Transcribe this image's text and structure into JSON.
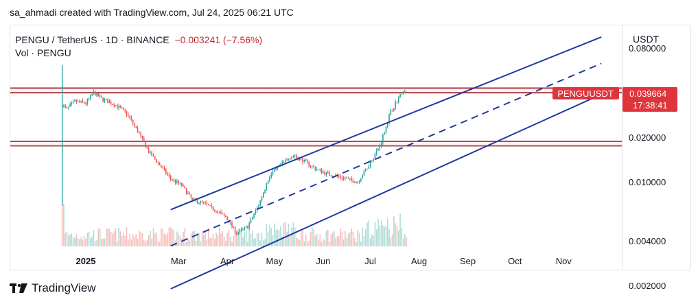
{
  "attribution": "sa_ahmadi created with TradingView.com, Jul 24, 2025 06:21 UTC",
  "legend": {
    "symbol": "PENGU / TetherUS · 1D · BINANCE",
    "change": "−0.003241 (−7.56%)",
    "volume_label": "Vol · PENGU"
  },
  "price_scale": {
    "currency": "USDT",
    "ticks": [
      "0.080000",
      "0.020000",
      "0.010000",
      "0.004000",
      "0.002000"
    ],
    "current_symbol": "PENGUUSDT",
    "current_price": "0.039664",
    "countdown": "17:38:41"
  },
  "footer_logo": "TradingView",
  "colors": {
    "candle_up": "#26a69a",
    "candle_down": "#ef5350",
    "channel": "#1e3a9e",
    "resistance": "#9b1c24",
    "price_label": "#e0343c"
  },
  "chart_data": {
    "type": "candlestick",
    "scale": "log",
    "ylim": [
      0.00155,
      0.115
    ],
    "x_ticks": [
      "2025",
      "Mar",
      "Apr",
      "May",
      "Jun",
      "Jul",
      "Aug",
      "Sep",
      "Oct",
      "Nov"
    ],
    "last_price": 0.039664,
    "closes": [
      {
        "date": "2024-12-17",
        "close": 0.033
      },
      {
        "date": "2024-12-20",
        "close": 0.031
      },
      {
        "date": "2024-12-25",
        "close": 0.035
      },
      {
        "date": "2025-01-01",
        "close": 0.034
      },
      {
        "date": "2025-01-06",
        "close": 0.04
      },
      {
        "date": "2025-01-12",
        "close": 0.036
      },
      {
        "date": "2025-01-20",
        "close": 0.033
      },
      {
        "date": "2025-01-27",
        "close": 0.029
      },
      {
        "date": "2025-02-03",
        "close": 0.022
      },
      {
        "date": "2025-02-10",
        "close": 0.016
      },
      {
        "date": "2025-02-17",
        "close": 0.013
      },
      {
        "date": "2025-02-24",
        "close": 0.0105
      },
      {
        "date": "2025-03-03",
        "close": 0.0095
      },
      {
        "date": "2025-03-10",
        "close": 0.0075
      },
      {
        "date": "2025-03-17",
        "close": 0.0072
      },
      {
        "date": "2025-03-24",
        "close": 0.0065
      },
      {
        "date": "2025-03-31",
        "close": 0.0058
      },
      {
        "date": "2025-04-07",
        "close": 0.0045
      },
      {
        "date": "2025-04-14",
        "close": 0.005
      },
      {
        "date": "2025-04-21",
        "close": 0.007
      },
      {
        "date": "2025-04-28",
        "close": 0.011
      },
      {
        "date": "2025-05-05",
        "close": 0.013
      },
      {
        "date": "2025-05-12",
        "close": 0.015
      },
      {
        "date": "2025-05-19",
        "close": 0.014
      },
      {
        "date": "2025-05-26",
        "close": 0.0125
      },
      {
        "date": "2025-06-02",
        "close": 0.0115
      },
      {
        "date": "2025-06-09",
        "close": 0.011
      },
      {
        "date": "2025-06-16",
        "close": 0.0105
      },
      {
        "date": "2025-06-23",
        "close": 0.01
      },
      {
        "date": "2025-06-30",
        "close": 0.013
      },
      {
        "date": "2025-07-07",
        "close": 0.0175
      },
      {
        "date": "2025-07-14",
        "close": 0.03
      },
      {
        "date": "2025-07-21",
        "close": 0.04
      },
      {
        "date": "2025-07-24",
        "close": 0.039664
      }
    ],
    "channel": {
      "upper": [
        {
          "date": "2025-02-24",
          "value": 0.0065
        },
        {
          "date": "2025-11-25",
          "value": 0.095
        }
      ],
      "middle": [
        {
          "date": "2025-02-24",
          "value": 0.0037
        },
        {
          "date": "2025-11-25",
          "value": 0.063
        }
      ],
      "lower": [
        {
          "date": "2025-02-24",
          "value": 0.0019
        },
        {
          "date": "2025-11-25",
          "value": 0.039
        }
      ]
    },
    "resistance_zones": [
      [
        0.04,
        0.043
      ],
      [
        0.0175,
        0.0188
      ]
    ]
  }
}
